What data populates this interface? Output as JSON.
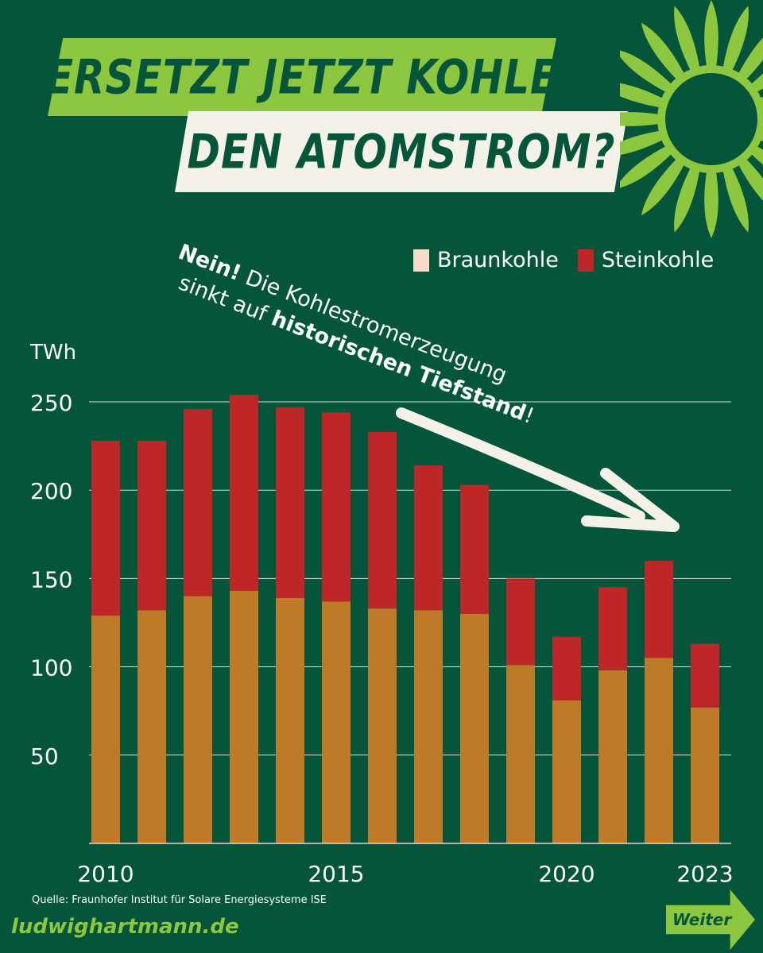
{
  "headline": {
    "line1": "ERSETZT JETZT KOHLE",
    "line2": "DEN ATOMSTROM?"
  },
  "annotation": {
    "bold1": "Nein!",
    "text1": " Die Kohlestromerzeugung",
    "text2": "sinkt auf ",
    "bold2": "historischen Tiefstand",
    "text3": "!"
  },
  "colors": {
    "background": "#04553a",
    "accent": "#8dc63f",
    "braunkohle": "#bf7a28",
    "steinkohle": "#be2628",
    "cream": "#f4f1e8"
  },
  "chart_data": {
    "type": "bar",
    "stacked": true,
    "x": [
      2010,
      2011,
      2012,
      2013,
      2014,
      2015,
      2016,
      2017,
      2018,
      2019,
      2020,
      2021,
      2022,
      2023
    ],
    "x_tick_labels": [
      "2010",
      "2015",
      "2020",
      "2023"
    ],
    "ylabel": "TWh",
    "ylim": [
      0,
      250
    ],
    "y_ticks": [
      50,
      100,
      150,
      200,
      250
    ],
    "grid": true,
    "legend": "top-right",
    "series": [
      {
        "name": "Braunkohle",
        "color": "#bf7a28",
        "legend_color": "#f6dcc8",
        "values": [
          129,
          132,
          140,
          143,
          139,
          137,
          133,
          132,
          130,
          101,
          81,
          98,
          105,
          77
        ]
      },
      {
        "name": "Steinkohle",
        "color": "#be2628",
        "legend_color": "#be2628",
        "values": [
          99,
          96,
          106,
          111,
          108,
          107,
          100,
          82,
          73,
          49,
          36,
          47,
          55,
          36
        ]
      }
    ]
  },
  "source": "Quelle: Fraunhofer Institut für Solare Energiesysteme ISE",
  "footer": {
    "url": "ludwighartmann.de",
    "next_label": "Weiter"
  }
}
